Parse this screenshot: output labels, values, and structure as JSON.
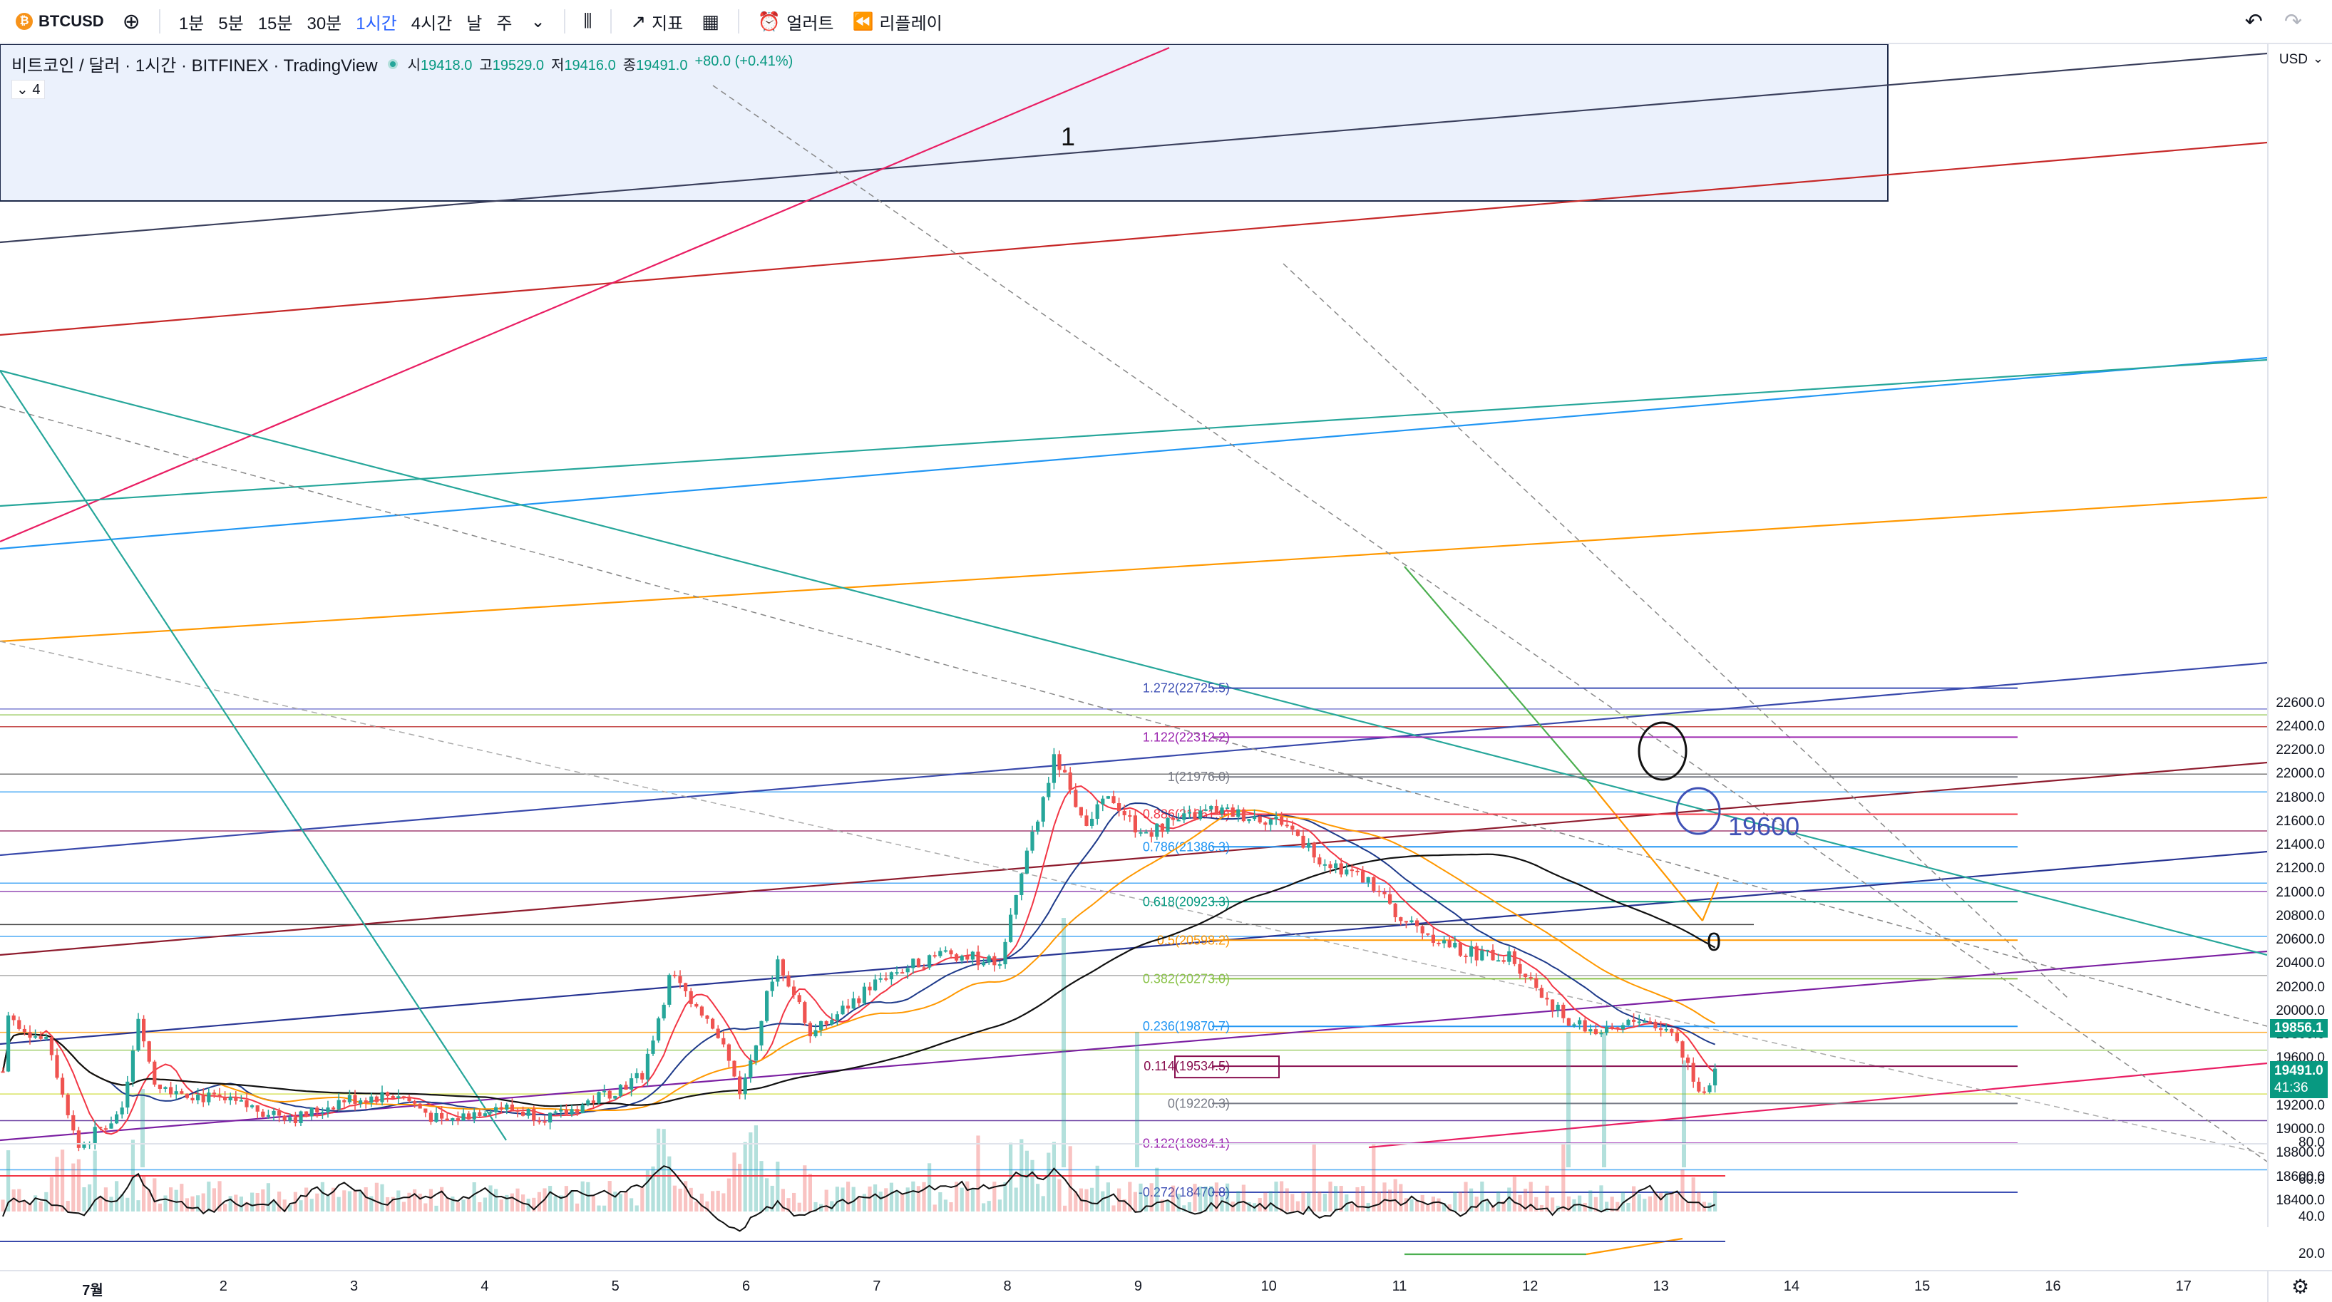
{
  "toolbar": {
    "symbol": "BTCUSD",
    "intervals": [
      "1분",
      "5분",
      "15분",
      "30분",
      "1시간",
      "4시간",
      "날",
      "주"
    ],
    "active_interval": "1시간",
    "indicators_label": "지표",
    "alert_label": "얼러트",
    "replay_label": "리플레이"
  },
  "legend": {
    "title": "비트코인 / 달러 · 1시간 · BITFINEX · TradingView",
    "open_key": "시",
    "open": "19418.0",
    "high_key": "고",
    "high": "19529.0",
    "low_key": "저",
    "low": "19416.0",
    "close_key": "종",
    "close": "19491.0",
    "change": "+80.0 (+0.41%)",
    "indicator_count": "4"
  },
  "price_axis": {
    "currency": "USD",
    "ticks": [
      "22600.0",
      "22400.0",
      "22200.0",
      "22000.0",
      "21800.0",
      "21600.0",
      "21400.0",
      "21200.0",
      "21000.0",
      "20800.0",
      "20600.0",
      "20400.0",
      "20200.0",
      "20000.0",
      "19800.0",
      "19600.0",
      "19400.0",
      "19200.0",
      "19000.0",
      "18800.0",
      "18600.0",
      "18400.0"
    ],
    "tag_upper": "19856.1",
    "tag_price": "19491.0",
    "tag_countdown": "41:36",
    "rsi_ticks": [
      "80.0",
      "60.0",
      "40.0",
      "20.0"
    ]
  },
  "time_axis": {
    "labels": [
      "7월",
      "2",
      "3",
      "4",
      "5",
      "6",
      "7",
      "8",
      "9",
      "10",
      "11",
      "12",
      "13",
      "14",
      "15",
      "16",
      "17"
    ]
  },
  "fib_levels": [
    {
      "ratio": "1.272",
      "price": 22725.5,
      "label": "1.272(22725.5)",
      "color": "#3f51b5"
    },
    {
      "ratio": "1.122",
      "price": 22312.2,
      "label": "1.122(22312.2)",
      "color": "#9c27b0"
    },
    {
      "ratio": "1",
      "price": 21976.0,
      "label": "1(21976.0)",
      "color": "#787b86"
    },
    {
      "ratio": "0.886",
      "price": 21661.9,
      "label": "0.886(21661.9)",
      "color": "#f23645"
    },
    {
      "ratio": "0.786",
      "price": 21386.3,
      "label": "0.786(21386.3)",
      "color": "#2196f3"
    },
    {
      "ratio": "0.618",
      "price": 20923.3,
      "label": "0.618(20923.3)",
      "color": "#089981"
    },
    {
      "ratio": "0.5",
      "price": 20598.2,
      "label": "0.5(20598.2)",
      "color": "#ff9800"
    },
    {
      "ratio": "0.382",
      "price": 20273.0,
      "label": "0.382(20273.0)",
      "color": "#8bc34a"
    },
    {
      "ratio": "0.236",
      "price": 19870.7,
      "label": "0.236(19870.7)",
      "color": "#2196f3"
    },
    {
      "ratio": "0.114",
      "price": 19534.5,
      "label": "0.114(19534.5)",
      "color": "#880e4f"
    },
    {
      "ratio": "0",
      "price": 19220.3,
      "label": "0(19220.3)",
      "color": "#787b86"
    },
    {
      "ratio": "-0.122",
      "price": 18884.1,
      "label": "-0.122(18884.1)",
      "color": "#9c27b0"
    },
    {
      "ratio": "-0.272",
      "price": 18470.8,
      "label": "-0.272(18470.8)",
      "color": "#3f51b5"
    }
  ],
  "annotations": {
    "wave_top": "1",
    "wave_bottom": "0",
    "target_price": "19600"
  },
  "colors": {
    "up": "#26a69a",
    "down": "#ef5350",
    "accent": "#2962ff"
  }
}
